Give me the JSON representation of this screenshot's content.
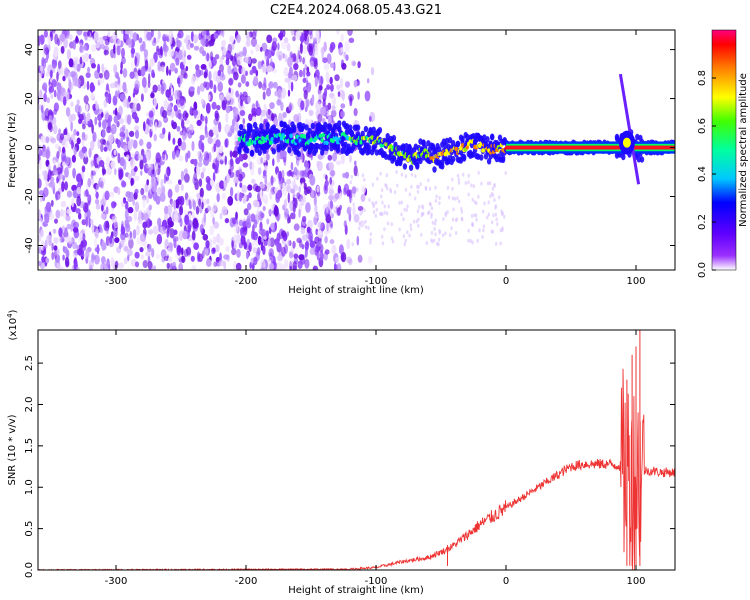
{
  "title": "C2E4.2024.068.05.43.G21",
  "chart_data": [
    {
      "type": "heatmap",
      "xlabel": "Height of straight line (km)",
      "ylabel": "Frequency (Hz)",
      "xlim": [
        -360,
        130
      ],
      "ylim": [
        -50,
        48
      ],
      "xticks": [
        -300,
        -200,
        -100,
        0,
        100
      ],
      "yticks": [
        -40,
        -20,
        0,
        20,
        40
      ],
      "colorbar": {
        "label": "Normalized spectral amplitude",
        "range": [
          0.0,
          1.0
        ],
        "ticks": [
          0.0,
          0.2,
          0.4,
          0.6,
          0.8
        ],
        "colors": [
          "#ffffff",
          "#8000ff",
          "#0000ff",
          "#00c8ff",
          "#00ff80",
          "#ffff00",
          "#ff8000",
          "#ff0000",
          "#ff0080"
        ]
      },
      "ridge": {
        "x": [
          -200,
          -175,
          -150,
          -125,
          -110,
          -100,
          -90,
          -80,
          -72,
          -65,
          -55,
          -45,
          -35,
          -25,
          -15,
          -5,
          0,
          85,
          90,
          95,
          100,
          130
        ],
        "freq": [
          3,
          4,
          3,
          4,
          3,
          3,
          0,
          -3,
          -5,
          -2,
          -4,
          -2,
          -1,
          2,
          -1,
          0,
          0,
          0,
          1,
          2,
          0,
          0
        ]
      },
      "noise_extent": [
        -360,
        -120
      ]
    },
    {
      "type": "line",
      "xlabel": "Height of straight line (km)",
      "ylabel": "SNR (10 * v/v)",
      "yscale_label": "(x10",
      "yscale_exp": "4",
      "yscale_close": ")",
      "xlim": [
        -360,
        130
      ],
      "ylim": [
        0,
        2.9
      ],
      "xticks": [
        -300,
        -200,
        -100,
        0,
        100
      ],
      "yticks": [
        0.0,
        0.5,
        1.0,
        1.5,
        2.0,
        2.5
      ],
      "grid": false,
      "color": "#ee3333",
      "envelope": {
        "x": [
          -360,
          -120,
          -100,
          -80,
          -60,
          -45,
          -40,
          -30,
          -20,
          -10,
          0,
          10,
          20,
          30,
          40,
          50,
          60,
          70,
          80,
          90,
          95,
          100,
          105,
          110,
          120,
          130
        ],
        "values": [
          0.0,
          0.01,
          0.03,
          0.1,
          0.15,
          0.25,
          0.3,
          0.42,
          0.55,
          0.65,
          0.75,
          0.85,
          0.95,
          1.05,
          1.15,
          1.25,
          1.28,
          1.28,
          1.28,
          1.25,
          1.2,
          1.15,
          1.2,
          1.2,
          1.18,
          1.18
        ]
      },
      "spikes": [
        {
          "x": -45,
          "y": 0.3
        },
        {
          "x": 93,
          "y": 2.3
        },
        {
          "x": 97,
          "y": 2.6
        },
        {
          "x": 100,
          "y": 2.7
        },
        {
          "x": 103,
          "y": 2.9
        }
      ]
    }
  ]
}
